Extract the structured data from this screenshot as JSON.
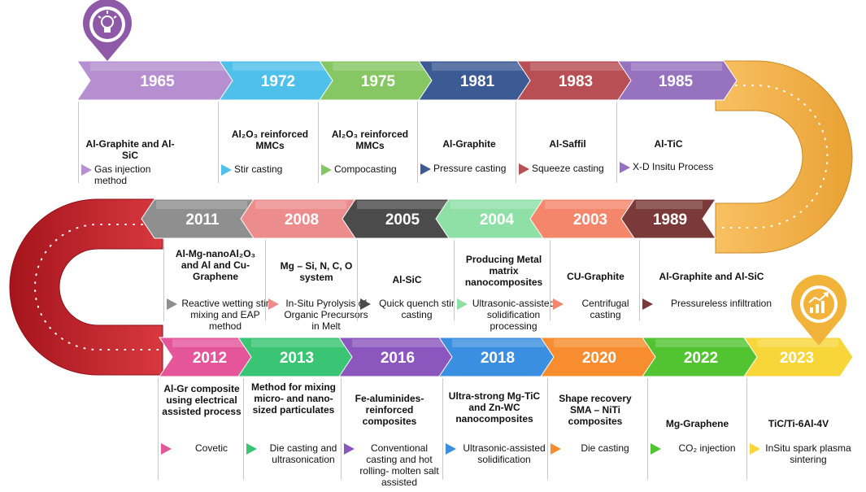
{
  "colors": {
    "top_curve": "#f8b84b",
    "left_curve": "#c9252e",
    "pin_bulb": "#8e5aa8",
    "pin_chart": "#f2b33a"
  },
  "pins": [
    {
      "name": "lightbulb-pin-icon",
      "color": "#8e5aa8"
    },
    {
      "name": "growth-chart-pin-icon",
      "color": "#f2b33a"
    }
  ],
  "rows": [
    {
      "name": "row-1",
      "events": [
        {
          "year": "1965",
          "color": "#b58fd0",
          "title": "Al-Graphite  and Al-SiC",
          "method": "Gas injection method"
        },
        {
          "year": "1972",
          "color": "#4fc0ea",
          "title": "Al₂O₃ reinforced MMCs",
          "method": "Stir casting"
        },
        {
          "year": "1975",
          "color": "#86c663",
          "title": "Al₂O₃ reinforced MMCs",
          "method": "Compocasting"
        },
        {
          "year": "1981",
          "color": "#3c5a93",
          "title": "Al-Graphite",
          "method": "Pressure casting"
        },
        {
          "year": "1983",
          "color": "#b84f54",
          "title": "Al-Saffil",
          "method": "Squeeze casting"
        },
        {
          "year": "1985",
          "color": "#9773bf",
          "title": "Al-TiC",
          "method": "X-D Insitu Process"
        }
      ]
    },
    {
      "name": "row-2",
      "events": [
        {
          "year": "2011",
          "color": "#8f8f8f",
          "title": "Al-Mg-nanoAl₂O₃ and Al and Cu-Graphene",
          "method": "Reactive wetting stir mixing and EAP method"
        },
        {
          "year": "2008",
          "color": "#ec8c8d",
          "title": "Mg – Si, N, C, O system",
          "method": "In-Situ Pyrolysis of Organic Precursors in Melt"
        },
        {
          "year": "2005",
          "color": "#4b4b4b",
          "title": "Al-SiC",
          "method": "Quick quench stir casting"
        },
        {
          "year": "2004",
          "color": "#8fe0a6",
          "title": "Producing Metal matrix nanocomposites",
          "method": "Ultrasonic-assisted solidification processing"
        },
        {
          "year": "2003",
          "color": "#f4866c",
          "title": "CU-Graphite",
          "method": "Centrifugal casting"
        },
        {
          "year": "1989",
          "color": "#7b3a3a",
          "title": "Al-Graphite  and Al-SiC",
          "method": "Pressureless infiltration"
        }
      ]
    },
    {
      "name": "row-3",
      "events": [
        {
          "year": "2012",
          "color": "#e5559a",
          "title": "Al-Gr composite using electrical assisted process",
          "method": "Covetic"
        },
        {
          "year": "2013",
          "color": "#39c573",
          "title": "Method for mixing micro- and nano-sized particulates",
          "method": "Die casting and ultrasonication"
        },
        {
          "year": "2016",
          "color": "#8b57bf",
          "title": "Fe-aluminides-reinforced composites",
          "method": "Conventional casting and hot rolling- molten salt assisted"
        },
        {
          "year": "2018",
          "color": "#3b8fe0",
          "title": "Ultra-strong Mg-TiC and Zn-WC nanocomposites",
          "method": "Ultrasonic-assisted solidification"
        },
        {
          "year": "2020",
          "color": "#f78d2e",
          "title": "Shape recovery SMA – NiTi composites",
          "method": "Die casting"
        },
        {
          "year": "2022",
          "color": "#53c431",
          "title": "Mg-Graphene",
          "method": "CO₂ injection"
        },
        {
          "year": "2023",
          "color": "#f8d63a",
          "title": "TiC/Ti-6Al-4V",
          "method": "InSitu spark plasma sintering"
        }
      ]
    }
  ]
}
